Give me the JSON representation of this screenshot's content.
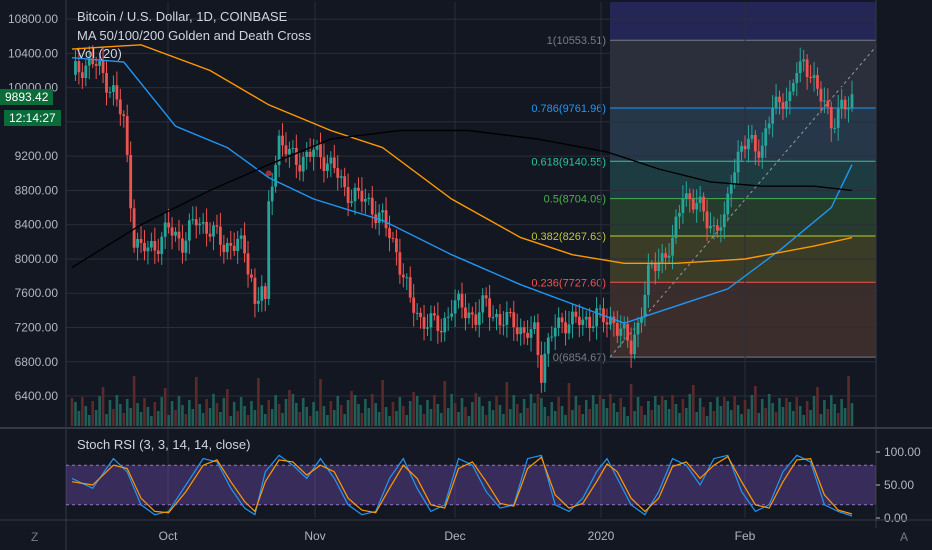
{
  "legend": {
    "title": "Bitcoin / U.S. Dollar, 1D, COINBASE",
    "ma": "MA 50/100/200 Golden and Death Cross",
    "vol": "Vol (20)",
    "stoch": "Stoch RSI (3, 3, 14, 14, close)"
  },
  "price_tag": {
    "price": "9893.42",
    "countdown": "12:14:27"
  },
  "corner": {
    "left": "Z",
    "right": "A"
  },
  "colors": {
    "background": "#131722",
    "up": "#26a69a",
    "down": "#ef5350",
    "ma50": "#2196f3",
    "ma100": "#ff9800",
    "ma200": "#000000",
    "stoch_k": "#2196f3",
    "stoch_d": "#ff9800",
    "stoch_band": "#7e57c2"
  },
  "chart_data": [
    {
      "type": "candlestick",
      "title": "Bitcoin / U.S. Dollar, 1D, COINBASE",
      "x_labels": [
        "Oct",
        "Nov",
        "Dec",
        "2020",
        "Feb"
      ],
      "y_ticks": [
        6400,
        6800,
        7200,
        7600,
        8000,
        8400,
        8800,
        9200,
        9600,
        10000,
        10400,
        10800
      ],
      "y_tick_labels": [
        "6400.00",
        "6800.00",
        "7200.00",
        "7600.00",
        "8000.00",
        "8400.00",
        "8800.00",
        "9200.00",
        "9600.00",
        "10000.00",
        "10400.00",
        "10800.00"
      ],
      "ylim": [
        6050,
        11000
      ],
      "close_path": [
        [
          0,
          10150
        ],
        [
          3,
          10250
        ],
        [
          6,
          10300
        ],
        [
          9,
          10150
        ],
        [
          12,
          9950
        ],
        [
          15,
          9600
        ],
        [
          17,
          8700
        ],
        [
          18,
          8250
        ],
        [
          20,
          8100
        ],
        [
          24,
          8150
        ],
        [
          28,
          8350
        ],
        [
          32,
          8200
        ],
        [
          36,
          8450
        ],
        [
          40,
          8350
        ],
        [
          44,
          8150
        ],
        [
          48,
          8200
        ],
        [
          50,
          8050
        ],
        [
          52,
          7800
        ],
        [
          53,
          7450
        ],
        [
          55,
          7700
        ],
        [
          56,
          7400
        ],
        [
          57,
          8600
        ],
        [
          58,
          8950
        ],
        [
          60,
          9400
        ],
        [
          63,
          9200
        ],
        [
          66,
          9150
        ],
        [
          70,
          9250
        ],
        [
          74,
          9150
        ],
        [
          76,
          9050
        ],
        [
          79,
          8800
        ],
        [
          82,
          8750
        ],
        [
          86,
          8650
        ],
        [
          90,
          8450
        ],
        [
          94,
          8100
        ],
        [
          98,
          7500
        ],
        [
          101,
          7300
        ],
        [
          104,
          7250
        ],
        [
          107,
          7200
        ],
        [
          110,
          7450
        ],
        [
          113,
          7450
        ],
        [
          117,
          7300
        ],
        [
          120,
          7500
        ],
        [
          124,
          7250
        ],
        [
          128,
          7300
        ],
        [
          131,
          7100
        ],
        [
          134,
          7150
        ],
        [
          136,
          6700
        ],
        [
          137,
          6900
        ],
        [
          140,
          7200
        ],
        [
          144,
          7300
        ],
        [
          148,
          7250
        ],
        [
          152,
          7350
        ],
        [
          155,
          7250
        ],
        [
          157,
          7300
        ],
        [
          160,
          7100
        ],
        [
          162,
          6950
        ],
        [
          164,
          7250
        ],
        [
          167,
          7800
        ],
        [
          170,
          8000
        ],
        [
          174,
          8150
        ],
        [
          177,
          8800
        ],
        [
          180,
          8650
        ],
        [
          183,
          8550
        ],
        [
          186,
          8350
        ],
        [
          189,
          8400
        ],
        [
          191,
          9000
        ],
        [
          194,
          9300
        ],
        [
          197,
          9350
        ],
        [
          200,
          9300
        ],
        [
          203,
          9750
        ],
        [
          206,
          9900
        ],
        [
          208,
          9850
        ],
        [
          210,
          10200
        ],
        [
          212,
          10300
        ],
        [
          214,
          10200
        ],
        [
          216,
          9900
        ],
        [
          218,
          9850
        ],
        [
          220,
          9600
        ],
        [
          222,
          9700
        ],
        [
          224,
          9750
        ],
        [
          226,
          9893
        ]
      ],
      "moving_averages": [
        {
          "name": "MA 50",
          "values": [
            [
              0,
              10350
            ],
            [
              15,
              10300
            ],
            [
              30,
              9550
            ],
            [
              45,
              9300
            ],
            [
              57,
              8950
            ],
            [
              70,
              8700
            ],
            [
              90,
              8450
            ],
            [
              110,
              8050
            ],
            [
              130,
              7700
            ],
            [
              150,
              7400
            ],
            [
              160,
              7250
            ],
            [
              175,
              7450
            ],
            [
              190,
              7650
            ],
            [
              205,
              8100
            ],
            [
              220,
              8600
            ],
            [
              226,
              9100
            ]
          ]
        },
        {
          "name": "MA 100",
          "values": [
            [
              0,
              10450
            ],
            [
              20,
              10500
            ],
            [
              40,
              10200
            ],
            [
              57,
              9800
            ],
            [
              75,
              9500
            ],
            [
              90,
              9300
            ],
            [
              110,
              8700
            ],
            [
              130,
              8250
            ],
            [
              145,
              8050
            ],
            [
              160,
              7950
            ],
            [
              175,
              7950
            ],
            [
              195,
              8000
            ],
            [
              215,
              8150
            ],
            [
              226,
              8250
            ]
          ]
        },
        {
          "name": "MA 200",
          "values": [
            [
              0,
              7900
            ],
            [
              20,
              8400
            ],
            [
              40,
              8800
            ],
            [
              57,
              9100
            ],
            [
              75,
              9400
            ],
            [
              95,
              9500
            ],
            [
              115,
              9500
            ],
            [
              135,
              9400
            ],
            [
              155,
              9250
            ],
            [
              170,
              9050
            ],
            [
              185,
              8900
            ],
            [
              200,
              8850
            ],
            [
              215,
              8850
            ],
            [
              226,
              8800
            ]
          ]
        }
      ],
      "fibonacci": [
        {
          "level": "1",
          "price": 10553.51,
          "label": "1(10553.51)"
        },
        {
          "level": "0.786",
          "price": 9761.96,
          "label": "0.786(9761.96)"
        },
        {
          "level": "0.618",
          "price": 9140.55,
          "label": "0.618(9140.55)"
        },
        {
          "level": "0.5",
          "price": 8704.09,
          "label": "0.5(8704.09)"
        },
        {
          "level": "0.382",
          "price": 8267.63,
          "label": "0.382(8267.63)"
        },
        {
          "level": "0.236",
          "price": 7727.6,
          "label": "0.236(7727.60)"
        },
        {
          "level": "0",
          "price": 6854.67,
          "label": "0(6854.67)"
        }
      ]
    },
    {
      "type": "line",
      "title": "Stoch RSI (3, 3, 14, 14, close)",
      "y_ticks": [
        0,
        50,
        100
      ],
      "y_tick_labels": [
        "0.00",
        "50.00",
        "100.00"
      ],
      "band": [
        20,
        80
      ],
      "series": [
        {
          "name": "K",
          "values": [
            [
              0,
              60
            ],
            [
              6,
              45
            ],
            [
              12,
              90
            ],
            [
              16,
              70
            ],
            [
              20,
              20
            ],
            [
              24,
              5
            ],
            [
              28,
              10
            ],
            [
              33,
              50
            ],
            [
              38,
              90
            ],
            [
              42,
              85
            ],
            [
              46,
              45
            ],
            [
              50,
              15
            ],
            [
              53,
              5
            ],
            [
              56,
              70
            ],
            [
              60,
              95
            ],
            [
              64,
              80
            ],
            [
              68,
              60
            ],
            [
              72,
              90
            ],
            [
              76,
              60
            ],
            [
              80,
              20
            ],
            [
              84,
              5
            ],
            [
              88,
              10
            ],
            [
              92,
              60
            ],
            [
              96,
              90
            ],
            [
              100,
              45
            ],
            [
              104,
              10
            ],
            [
              108,
              20
            ],
            [
              112,
              90
            ],
            [
              116,
              80
            ],
            [
              120,
              40
            ],
            [
              124,
              15
            ],
            [
              128,
              20
            ],
            [
              132,
              90
            ],
            [
              136,
              95
            ],
            [
              140,
              20
            ],
            [
              144,
              10
            ],
            [
              148,
              30
            ],
            [
              152,
              70
            ],
            [
              155,
              90
            ],
            [
              158,
              60
            ],
            [
              162,
              20
            ],
            [
              166,
              5
            ],
            [
              170,
              40
            ],
            [
              174,
              90
            ],
            [
              178,
              80
            ],
            [
              182,
              50
            ],
            [
              186,
              90
            ],
            [
              190,
              95
            ],
            [
              194,
              40
            ],
            [
              198,
              10
            ],
            [
              202,
              20
            ],
            [
              206,
              70
            ],
            [
              210,
              95
            ],
            [
              214,
              85
            ],
            [
              218,
              20
            ],
            [
              222,
              10
            ],
            [
              226,
              3
            ]
          ]
        },
        {
          "name": "D",
          "values": [
            [
              0,
              55
            ],
            [
              6,
              50
            ],
            [
              12,
              80
            ],
            [
              16,
              75
            ],
            [
              20,
              30
            ],
            [
              24,
              10
            ],
            [
              28,
              8
            ],
            [
              33,
              40
            ],
            [
              38,
              80
            ],
            [
              42,
              88
            ],
            [
              46,
              55
            ],
            [
              50,
              25
            ],
            [
              53,
              10
            ],
            [
              56,
              55
            ],
            [
              60,
              88
            ],
            [
              64,
              85
            ],
            [
              68,
              65
            ],
            [
              72,
              80
            ],
            [
              76,
              70
            ],
            [
              80,
              30
            ],
            [
              84,
              12
            ],
            [
              88,
              8
            ],
            [
              92,
              45
            ],
            [
              96,
              80
            ],
            [
              100,
              60
            ],
            [
              104,
              20
            ],
            [
              108,
              15
            ],
            [
              112,
              75
            ],
            [
              116,
              85
            ],
            [
              120,
              55
            ],
            [
              124,
              22
            ],
            [
              128,
              18
            ],
            [
              132,
              75
            ],
            [
              136,
              92
            ],
            [
              140,
              35
            ],
            [
              144,
              15
            ],
            [
              148,
              22
            ],
            [
              152,
              55
            ],
            [
              155,
              82
            ],
            [
              158,
              70
            ],
            [
              162,
              30
            ],
            [
              166,
              10
            ],
            [
              170,
              30
            ],
            [
              174,
              78
            ],
            [
              178,
              85
            ],
            [
              182,
              60
            ],
            [
              186,
              80
            ],
            [
              190,
              93
            ],
            [
              194,
              55
            ],
            [
              198,
              20
            ],
            [
              202,
              15
            ],
            [
              206,
              55
            ],
            [
              210,
              88
            ],
            [
              214,
              90
            ],
            [
              218,
              35
            ],
            [
              222,
              12
            ],
            [
              226,
              6
            ]
          ]
        }
      ]
    }
  ]
}
